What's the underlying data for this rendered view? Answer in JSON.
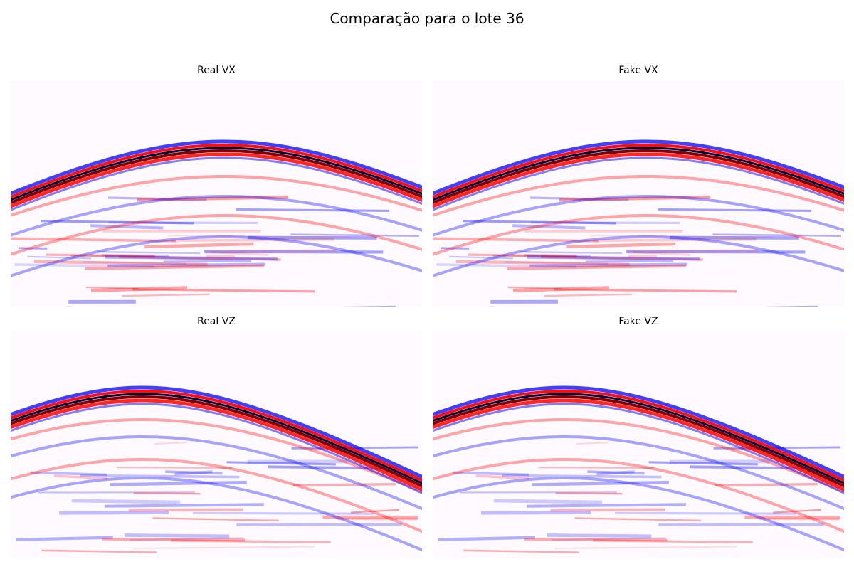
{
  "figure": {
    "title": "Comparação para o lote 36",
    "colormap": "seismic",
    "colors": {
      "negative_dark": "#000040",
      "negative": "#0000ff",
      "zero": "#fffaff",
      "positive": "#ff0000",
      "positive_dark": "#800000"
    },
    "panels": [
      {
        "key": "real_vx",
        "title": "Real VX",
        "component": "vx",
        "seed": 11
      },
      {
        "key": "fake_vx",
        "title": "Fake VX",
        "component": "vx",
        "seed": 11
      },
      {
        "key": "real_vz",
        "title": "Real VZ",
        "component": "vz",
        "seed": 23
      },
      {
        "key": "fake_vz",
        "title": "Fake VZ",
        "component": "vz",
        "seed": 23
      }
    ]
  }
}
